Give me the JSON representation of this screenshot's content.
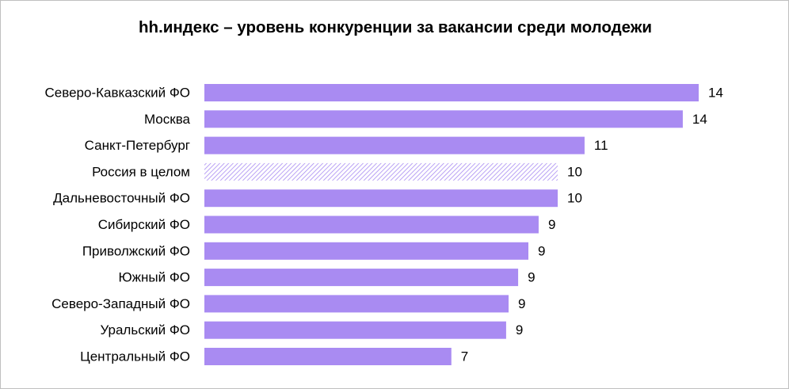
{
  "chart_data": {
    "type": "hbar",
    "title": "hh.индекс – уровень конкуренции за вакансии среди молодежи",
    "categories": [
      "Северо-Кавказский ФО",
      "Москва",
      "Санкт-Петербург",
      "Россия в целом",
      "Дальневосточный ФО",
      "Сибирский ФО",
      "Приволжский  ФО",
      "Южный ФО",
      "Северо-Западный ФО",
      "Уральский ФО",
      "Центральный ФО"
    ],
    "values": [
      13.99,
      13.54,
      10.76,
      10.0,
      10.0,
      9.46,
      9.17,
      8.88,
      8.61,
      8.54,
      6.99
    ],
    "value_labels": [
      "14",
      "14",
      "11",
      "10",
      "10",
      "9",
      "9",
      "9",
      "9",
      "9",
      "7"
    ],
    "color": "#a98bf2",
    "hatched_index": 3
  }
}
